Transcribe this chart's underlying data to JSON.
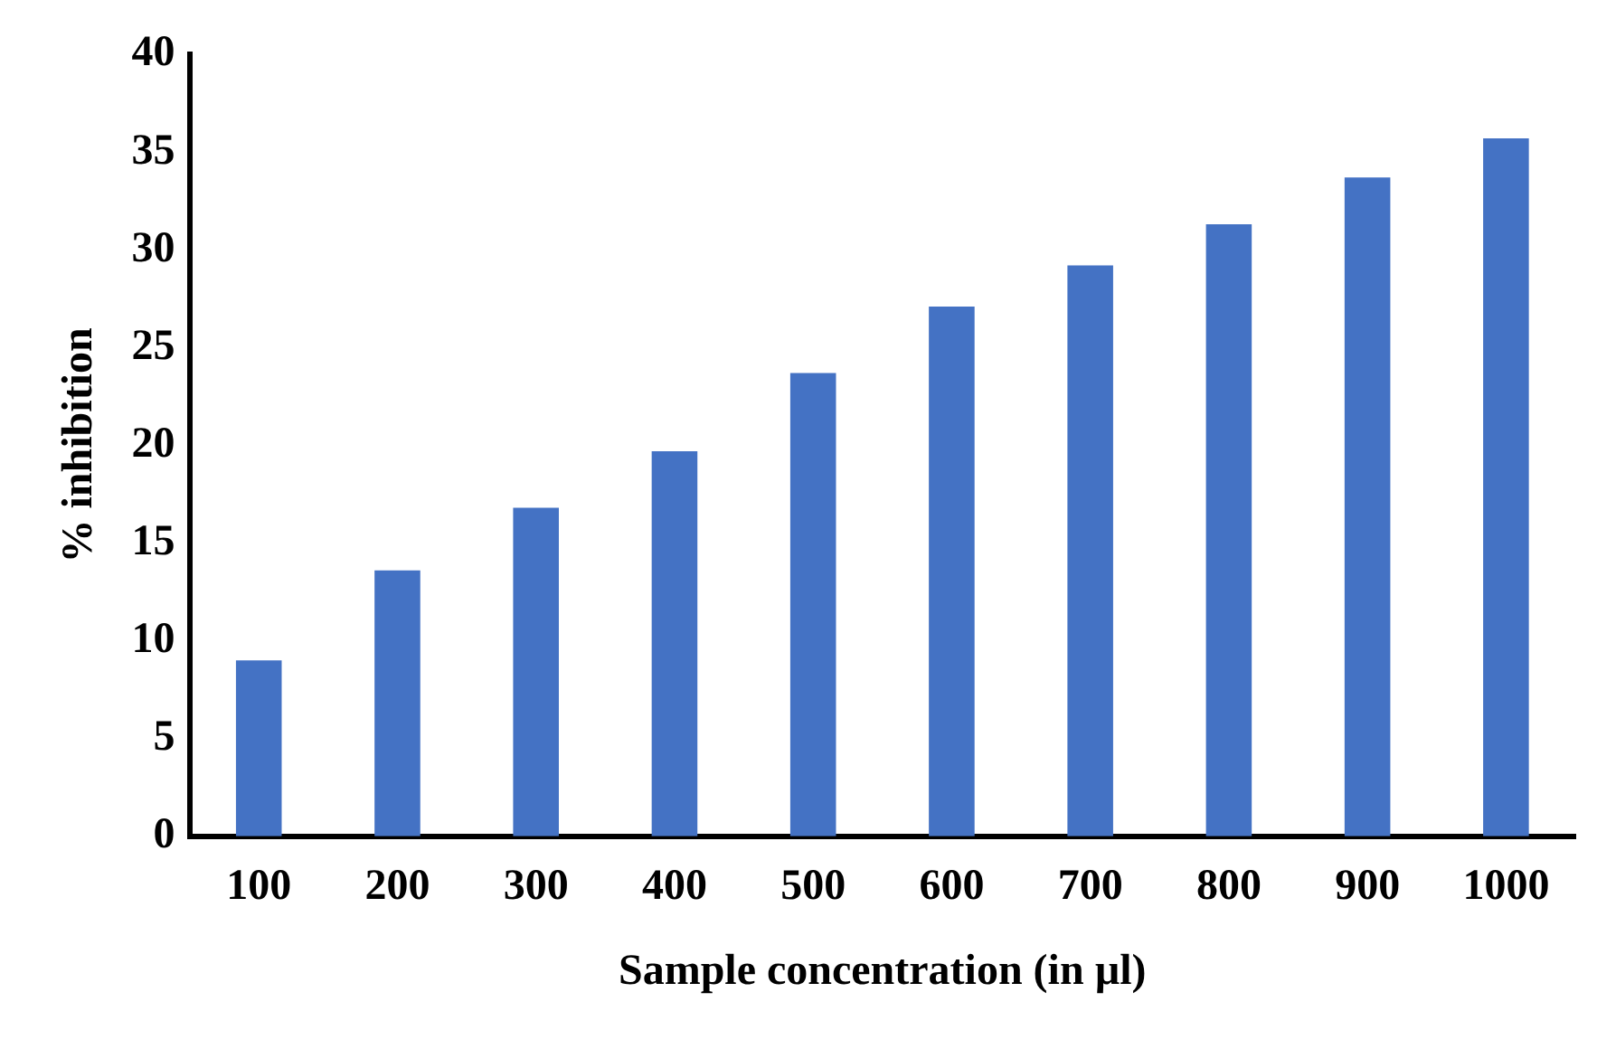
{
  "chart_data": {
    "type": "bar",
    "xlabel": "Sample concentration (in µl)",
    "ylabel": "% inhibition",
    "categories": [
      "100",
      "200",
      "300",
      "400",
      "500",
      "600",
      "700",
      "800",
      "900",
      "1000"
    ],
    "values": [
      9.0,
      13.6,
      16.8,
      19.7,
      23.7,
      27.1,
      29.2,
      31.3,
      33.7,
      35.7
    ],
    "color": "#4472c4",
    "ylim": [
      0,
      40
    ],
    "yticks": [
      0,
      5,
      10,
      15,
      20,
      25,
      30,
      35,
      40
    ],
    "grid": false,
    "legend": false
  }
}
